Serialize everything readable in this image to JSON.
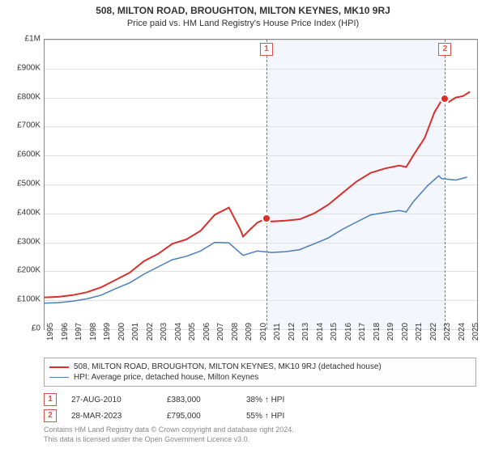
{
  "title": "508, MILTON ROAD, BROUGHTON, MILTON KEYNES, MK10 9RJ",
  "subtitle": "Price paid vs. HM Land Registry's House Price Index (HPI)",
  "chart": {
    "type": "line",
    "background_color": "#ffffff",
    "shaded_band_color": "#f3f6fc",
    "grid_color": "#e0e0e0",
    "border_color": "#888888",
    "x_range_years": [
      1995,
      2025.5
    ],
    "x_ticks": [
      1995,
      1996,
      1997,
      1998,
      1999,
      2000,
      2001,
      2002,
      2003,
      2004,
      2005,
      2006,
      2007,
      2008,
      2009,
      2010,
      2011,
      2012,
      2013,
      2014,
      2015,
      2016,
      2017,
      2018,
      2019,
      2020,
      2021,
      2022,
      2023,
      2024,
      2025
    ],
    "y_range": [
      0,
      1000000
    ],
    "y_ticks": [
      0,
      100000,
      200000,
      300000,
      400000,
      500000,
      600000,
      700000,
      800000,
      900000,
      1000000
    ],
    "y_tick_labels": [
      "£0",
      "£100K",
      "£200K",
      "£300K",
      "£400K",
      "£500K",
      "£600K",
      "£700K",
      "£800K",
      "£900K",
      "£1M"
    ],
    "shaded_band_years": [
      2010.65,
      2023.24
    ],
    "series": [
      {
        "id": "subject",
        "label": "508, MILTON ROAD, BROUGHTON, MILTON KEYNES, MK10 9RJ (detached house)",
        "color": "#d9302c",
        "line_width": 2,
        "points": [
          [
            1995,
            110000
          ],
          [
            1996,
            112000
          ],
          [
            1997,
            118000
          ],
          [
            1998,
            128000
          ],
          [
            1999,
            145000
          ],
          [
            2000,
            170000
          ],
          [
            2001,
            195000
          ],
          [
            2002,
            235000
          ],
          [
            2003,
            260000
          ],
          [
            2004,
            295000
          ],
          [
            2005,
            310000
          ],
          [
            2006,
            340000
          ],
          [
            2007,
            395000
          ],
          [
            2008,
            420000
          ],
          [
            2008.8,
            345000
          ],
          [
            2009,
            320000
          ],
          [
            2009.5,
            345000
          ],
          [
            2010,
            368000
          ],
          [
            2010.65,
            383000
          ],
          [
            2011,
            372000
          ],
          [
            2012,
            375000
          ],
          [
            2013,
            380000
          ],
          [
            2014,
            400000
          ],
          [
            2015,
            430000
          ],
          [
            2016,
            470000
          ],
          [
            2017,
            510000
          ],
          [
            2018,
            540000
          ],
          [
            2019,
            555000
          ],
          [
            2020,
            565000
          ],
          [
            2020.5,
            560000
          ],
          [
            2021,
            600000
          ],
          [
            2021.8,
            660000
          ],
          [
            2022.5,
            750000
          ],
          [
            2023,
            790000
          ],
          [
            2023.24,
            795000
          ],
          [
            2023.5,
            785000
          ],
          [
            2024,
            800000
          ],
          [
            2024.5,
            805000
          ],
          [
            2025,
            820000
          ]
        ]
      },
      {
        "id": "hpi",
        "label": "HPI: Average price, detached house, Milton Keynes",
        "color": "#4a7ebb",
        "line_width": 1.5,
        "points": [
          [
            1995,
            90000
          ],
          [
            1996,
            92000
          ],
          [
            1997,
            97000
          ],
          [
            1998,
            105000
          ],
          [
            1999,
            118000
          ],
          [
            2000,
            140000
          ],
          [
            2001,
            160000
          ],
          [
            2002,
            190000
          ],
          [
            2003,
            215000
          ],
          [
            2004,
            240000
          ],
          [
            2005,
            252000
          ],
          [
            2006,
            270000
          ],
          [
            2007,
            300000
          ],
          [
            2008,
            298000
          ],
          [
            2009,
            255000
          ],
          [
            2010,
            270000
          ],
          [
            2011,
            265000
          ],
          [
            2012,
            268000
          ],
          [
            2013,
            275000
          ],
          [
            2014,
            295000
          ],
          [
            2015,
            315000
          ],
          [
            2016,
            345000
          ],
          [
            2017,
            370000
          ],
          [
            2018,
            395000
          ],
          [
            2019,
            403000
          ],
          [
            2020,
            410000
          ],
          [
            2020.5,
            405000
          ],
          [
            2021,
            440000
          ],
          [
            2022,
            495000
          ],
          [
            2022.8,
            530000
          ],
          [
            2023,
            520000
          ],
          [
            2024,
            515000
          ],
          [
            2024.8,
            525000
          ]
        ]
      }
    ],
    "markers": [
      {
        "n": 1,
        "year": 2010.65,
        "price": 383000,
        "color": "#d9302c"
      },
      {
        "n": 2,
        "year": 2023.24,
        "price": 795000,
        "color": "#d9302c"
      }
    ]
  },
  "legend": {
    "items": [
      {
        "color": "#d9302c",
        "label_path": "chart.series.0.label"
      },
      {
        "color": "#4a7ebb",
        "label_path": "chart.series.1.label"
      }
    ]
  },
  "transactions": [
    {
      "n": "1",
      "date": "27-AUG-2010",
      "price": "£383,000",
      "pct": "38% ↑ HPI"
    },
    {
      "n": "2",
      "date": "28-MAR-2023",
      "price": "£795,000",
      "pct": "55% ↑ HPI"
    }
  ],
  "footer_line1": "Contains HM Land Registry data © Crown copyright and database right 2024.",
  "footer_line2": "This data is licensed under the Open Government Licence v3.0."
}
